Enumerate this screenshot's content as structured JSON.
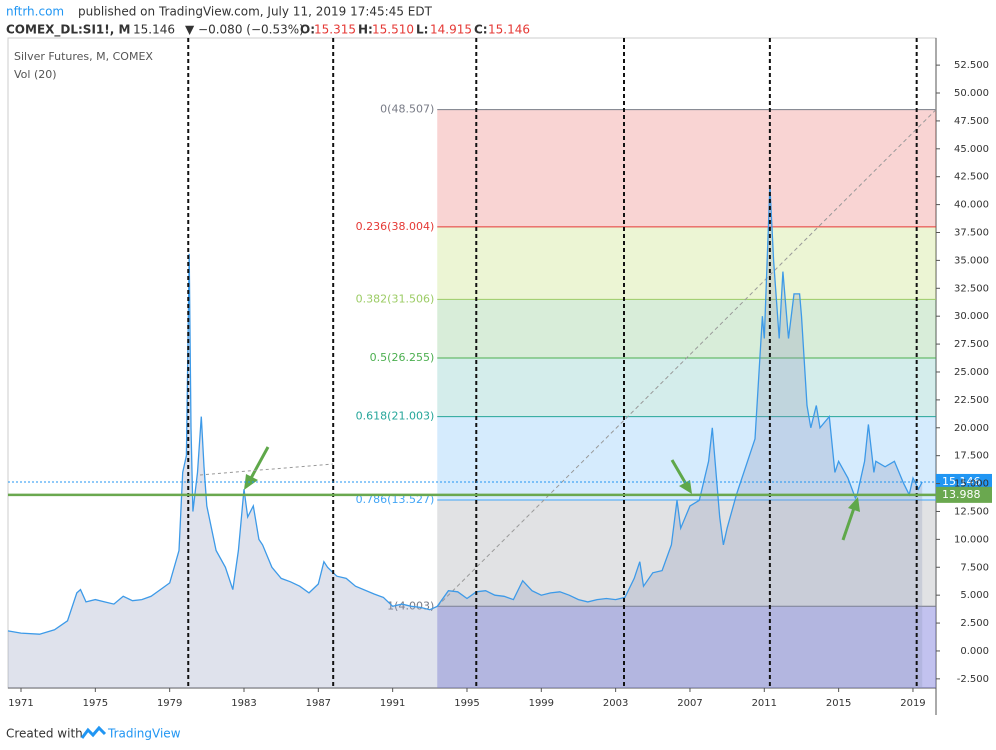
{
  "header": {
    "publisher": "nftrh.com",
    "published": "published on TradingView.com, July 11, 2019 17:45:45 EDT",
    "symbol": "COMEX_DL:SI1!, M",
    "last": "15.146",
    "change": "▼ −0.080 (−0.53%)",
    "ohlc": [
      {
        "label": "O:",
        "value": "15.315"
      },
      {
        "label": "H:",
        "value": "15.510"
      },
      {
        "label": "L:",
        "value": "14.915"
      },
      {
        "label": "C:",
        "value": "15.146"
      }
    ]
  },
  "footer": {
    "created": "Created with",
    "brand": "TradingView"
  },
  "chart_data": {
    "type": "area",
    "title": "Silver Futures, M, COMEX",
    "subtitle": "Vol (20)",
    "series": [
      {
        "name": "Silver Futures",
        "color": "#3d9ae8",
        "x": [
          1970.3,
          1971,
          1972,
          1972.8,
          1973.5,
          1974.0,
          1974.2,
          1974.5,
          1975,
          1975.5,
          1976,
          1976.5,
          1977,
          1977.5,
          1978,
          1978.5,
          1979,
          1979.5,
          1979.7,
          1979.9,
          1980.05,
          1980.15,
          1980.25,
          1980.5,
          1980.7,
          1980.85,
          1981,
          1981.5,
          1982,
          1982.4,
          1982.7,
          1983.0,
          1983.2,
          1983.5,
          1983.8,
          1984,
          1984.5,
          1985,
          1985.5,
          1986,
          1986.5,
          1987,
          1987.3,
          1987.5,
          1987.8,
          1988,
          1988.5,
          1989,
          1990,
          1990.5,
          1991,
          1991.5,
          1992,
          1992.5,
          1993,
          1993.4,
          1994,
          1994.5,
          1995,
          1995.5,
          1996,
          1996.5,
          1997,
          1997.5,
          1998.0,
          1998.5,
          1999,
          1999.5,
          2000,
          2000.5,
          2001,
          2001.5,
          2002,
          2002.5,
          2003,
          2003.5,
          2004,
          2004.3,
          2004.5,
          2005,
          2005.5,
          2006,
          2006.3,
          2006.5,
          2007,
          2007.5,
          2008,
          2008.2,
          2008.6,
          2008.8,
          2009,
          2009.5,
          2010,
          2010.5,
          2010.9,
          2011.0,
          2011.3,
          2011.5,
          2011.8,
          2012,
          2012.3,
          2012.6,
          2012.9,
          2013,
          2013.3,
          2013.5,
          2013.8,
          2014,
          2014.5,
          2014.8,
          2015,
          2015.5,
          2015.9,
          2016,
          2016.4,
          2016.6,
          2016.9,
          2017,
          2017.5,
          2018,
          2018.5,
          2018.8,
          2019,
          2019.3,
          2019.5
        ],
        "values": [
          1.8,
          1.6,
          1.5,
          1.9,
          2.7,
          5.2,
          5.5,
          4.4,
          4.6,
          4.4,
          4.2,
          4.9,
          4.5,
          4.6,
          4.9,
          5.5,
          6.1,
          9,
          16,
          17.5,
          35.6,
          20,
          12.5,
          16,
          21,
          16.5,
          13,
          9,
          7.5,
          5.5,
          9,
          14.5,
          12,
          13,
          10,
          9.5,
          7.5,
          6.5,
          6.2,
          5.8,
          5.2,
          6,
          8,
          7.5,
          7,
          6.7,
          6.5,
          5.8,
          5.1,
          4.8,
          4.0,
          4.2,
          4.0,
          3.9,
          3.7,
          4.0,
          5.4,
          5.3,
          4.7,
          5.3,
          5.4,
          5.0,
          4.9,
          4.6,
          6.3,
          5.4,
          5.0,
          5.2,
          5.3,
          5.0,
          4.6,
          4.4,
          4.6,
          4.7,
          4.6,
          4.8,
          6.5,
          8.0,
          5.8,
          7.0,
          7.2,
          9.5,
          13.5,
          11,
          13,
          13.5,
          17,
          20,
          12,
          9.5,
          11,
          14,
          16.5,
          19,
          30,
          28,
          41.7,
          35,
          28,
          34,
          28,
          32,
          32,
          30,
          22,
          20,
          22,
          20,
          21,
          16,
          17,
          15.5,
          13.7,
          14,
          17,
          20.3,
          16,
          17,
          16.5,
          17,
          15,
          14,
          15.5,
          14.5,
          15.146
        ]
      }
    ],
    "xlim": [
      1970.3,
      2020.24
    ],
    "xticks": [
      1971,
      1975,
      1979,
      1983,
      1987,
      1991,
      1995,
      1999,
      2003,
      2007,
      2011,
      2015,
      2019
    ],
    "ylim": [
      -3.32,
      54.93
    ],
    "yticks": [
      {
        "value": -2.5,
        "label": "-2.500"
      },
      {
        "value": 0,
        "label": "0.000"
      },
      {
        "value": 2.5,
        "label": "2.500"
      },
      {
        "value": 5,
        "label": "5.000"
      },
      {
        "value": 7.5,
        "label": "7.500"
      },
      {
        "value": 10,
        "label": "10.000"
      },
      {
        "value": 12.5,
        "label": "12.500"
      },
      {
        "value": 15,
        "label": "15.000"
      },
      {
        "value": 17.5,
        "label": "17.500"
      },
      {
        "value": 20,
        "label": "20.000"
      },
      {
        "value": 22.5,
        "label": "22.500"
      },
      {
        "value": 25,
        "label": "25.000"
      },
      {
        "value": 27.5,
        "label": "27.500"
      },
      {
        "value": 30,
        "label": "30.000"
      },
      {
        "value": 32.5,
        "label": "32.500"
      },
      {
        "value": 35,
        "label": "35.000"
      },
      {
        "value": 37.5,
        "label": "37.500"
      },
      {
        "value": 40,
        "label": "40.000"
      },
      {
        "value": 42.5,
        "label": "42.500"
      },
      {
        "value": 45,
        "label": "45.000"
      },
      {
        "value": 47.5,
        "label": "47.500"
      },
      {
        "value": 50,
        "label": "50.000"
      },
      {
        "value": 52.5,
        "label": "52.500"
      }
    ],
    "grid": false,
    "vertical_lines": [
      1980.0,
      1987.8,
      1995.5,
      2003.45,
      2011.3,
      2019.2
    ],
    "price_lines": [
      {
        "value": 15.146,
        "color": "#2196f3"
      },
      {
        "value": 13.988,
        "color": "#6aa84f"
      }
    ],
    "fib": {
      "x_start": 1993.4,
      "below_color": "rgba(120,120,220,0.45)",
      "levels": [
        {
          "value": 48.507,
          "label": "0(48.507)",
          "color": "#787b86",
          "fill": "rgba(229,57,53,0.22)"
        },
        {
          "value": 38.004,
          "label": "0.236(38.004)",
          "color": "#e53935",
          "fill": "rgba(170,210,60,0.22)"
        },
        {
          "value": 31.506,
          "label": "0.382(31.506)",
          "color": "#9ccc65",
          "fill": "rgba(76,175,80,0.22)"
        },
        {
          "value": 26.255,
          "label": "0.5(26.255)",
          "color": "#4caf50",
          "fill": "rgba(38,166,154,0.2)"
        },
        {
          "value": 21.003,
          "label": "0.618(21.003)",
          "color": "#26a69a",
          "fill": "rgba(66,165,245,0.22)"
        },
        {
          "value": 13.527,
          "label": "0.786(13.527)",
          "color": "#42a5f5",
          "fill": "rgba(120,123,134,0.22)"
        },
        {
          "value": 4.003,
          "label": "1(4.003)",
          "color": "#787b86",
          "fill": null
        }
      ]
    }
  }
}
